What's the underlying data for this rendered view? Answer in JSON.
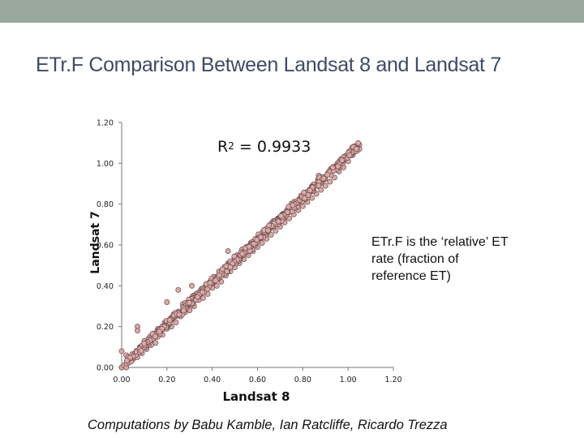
{
  "slide": {
    "title": "ETr.F Comparison Between Landsat 8 and Landsat 7",
    "credit": "Computations by Babu Kamble, Ian Ratcliffe, Ricardo Trezza",
    "note": "ETr.F is the ‘relative’ ET rate (fraction of reference ET)"
  },
  "chart_data": {
    "type": "scatter",
    "xlabel": "Landsat 8",
    "ylabel": "Landsat 7",
    "xlim": [
      0,
      1.2
    ],
    "ylim": [
      0,
      1.2
    ],
    "x_ticks": [
      "0.00",
      "0.20",
      "0.40",
      "0.60",
      "0.80",
      "1.00",
      "1.20"
    ],
    "y_ticks": [
      "0.00",
      "0.20",
      "0.40",
      "0.60",
      "0.80",
      "1.00",
      "1.20"
    ],
    "grid": false,
    "annotation": {
      "r2_label": "R",
      "r2_exponent": "2",
      "r2_value": " = 0.9933"
    },
    "marker_fill": "#d9aaa8",
    "marker_edge": "#6b4a4a",
    "point_count": 700,
    "points": [
      [
        0.0,
        0.0
      ],
      [
        0.01,
        0.01
      ],
      [
        0.02,
        0.0
      ],
      [
        0.02,
        0.06
      ],
      [
        0.03,
        0.04
      ],
      [
        0.04,
        0.05
      ],
      [
        0.05,
        0.04
      ],
      [
        0.06,
        0.07
      ],
      [
        0.07,
        0.05
      ],
      [
        0.08,
        0.1
      ],
      [
        0.09,
        0.07
      ],
      [
        0.1,
        0.13
      ],
      [
        0.11,
        0.09
      ],
      [
        0.12,
        0.12
      ],
      [
        0.13,
        0.11
      ],
      [
        0.14,
        0.15
      ],
      [
        0.15,
        0.12
      ],
      [
        0.16,
        0.17
      ],
      [
        0.17,
        0.18
      ],
      [
        0.18,
        0.16
      ],
      [
        0.19,
        0.22
      ],
      [
        0.2,
        0.19
      ],
      [
        0.21,
        0.23
      ],
      [
        0.22,
        0.2
      ],
      [
        0.23,
        0.26
      ],
      [
        0.24,
        0.22
      ],
      [
        0.25,
        0.27
      ],
      [
        0.26,
        0.25
      ],
      [
        0.27,
        0.31
      ],
      [
        0.28,
        0.27
      ],
      [
        0.29,
        0.3
      ],
      [
        0.3,
        0.28
      ],
      [
        0.31,
        0.34
      ],
      [
        0.32,
        0.3
      ],
      [
        0.33,
        0.36
      ],
      [
        0.34,
        0.33
      ],
      [
        0.35,
        0.38
      ],
      [
        0.36,
        0.34
      ],
      [
        0.37,
        0.4
      ],
      [
        0.38,
        0.36
      ],
      [
        0.39,
        0.42
      ],
      [
        0.4,
        0.39
      ],
      [
        0.41,
        0.44
      ],
      [
        0.42,
        0.4
      ],
      [
        0.43,
        0.47
      ],
      [
        0.44,
        0.42
      ],
      [
        0.45,
        0.48
      ],
      [
        0.46,
        0.45
      ],
      [
        0.47,
        0.51
      ],
      [
        0.48,
        0.47
      ],
      [
        0.49,
        0.52
      ],
      [
        0.5,
        0.49
      ],
      [
        0.51,
        0.55
      ],
      [
        0.52,
        0.51
      ],
      [
        0.53,
        0.57
      ],
      [
        0.54,
        0.53
      ],
      [
        0.55,
        0.59
      ],
      [
        0.56,
        0.55
      ],
      [
        0.57,
        0.61
      ],
      [
        0.58,
        0.57
      ],
      [
        0.59,
        0.63
      ],
      [
        0.6,
        0.59
      ],
      [
        0.61,
        0.64
      ],
      [
        0.62,
        0.61
      ],
      [
        0.63,
        0.67
      ],
      [
        0.64,
        0.63
      ],
      [
        0.65,
        0.69
      ],
      [
        0.66,
        0.65
      ],
      [
        0.67,
        0.71
      ],
      [
        0.68,
        0.67
      ],
      [
        0.69,
        0.73
      ],
      [
        0.7,
        0.69
      ],
      [
        0.71,
        0.75
      ],
      [
        0.72,
        0.71
      ],
      [
        0.73,
        0.77
      ],
      [
        0.74,
        0.73
      ],
      [
        0.75,
        0.79
      ],
      [
        0.76,
        0.75
      ],
      [
        0.77,
        0.81
      ],
      [
        0.78,
        0.77
      ],
      [
        0.79,
        0.83
      ],
      [
        0.8,
        0.79
      ],
      [
        0.81,
        0.85
      ],
      [
        0.82,
        0.81
      ],
      [
        0.83,
        0.87
      ],
      [
        0.84,
        0.83
      ],
      [
        0.85,
        0.89
      ],
      [
        0.86,
        0.85
      ],
      [
        0.87,
        0.91
      ],
      [
        0.88,
        0.87
      ],
      [
        0.89,
        0.93
      ],
      [
        0.9,
        0.89
      ],
      [
        0.91,
        0.95
      ],
      [
        0.92,
        0.91
      ],
      [
        0.93,
        0.97
      ],
      [
        0.94,
        0.93
      ],
      [
        0.95,
        0.99
      ],
      [
        0.96,
        0.96
      ],
      [
        0.97,
        1.01
      ],
      [
        0.98,
        0.98
      ],
      [
        0.99,
        1.03
      ],
      [
        1.0,
        1.01
      ],
      [
        1.01,
        1.05
      ],
      [
        1.02,
        1.04
      ],
      [
        1.03,
        1.08
      ],
      [
        1.04,
        1.06
      ],
      [
        1.05,
        1.09
      ],
      [
        1.05,
        1.07
      ],
      [
        0.2,
        0.32
      ],
      [
        0.07,
        0.2
      ],
      [
        0.07,
        0.18
      ],
      [
        0.0,
        0.08
      ],
      [
        0.31,
        0.4
      ],
      [
        0.47,
        0.57
      ],
      [
        0.25,
        0.38
      ],
      [
        0.87,
        0.94
      ]
    ]
  }
}
